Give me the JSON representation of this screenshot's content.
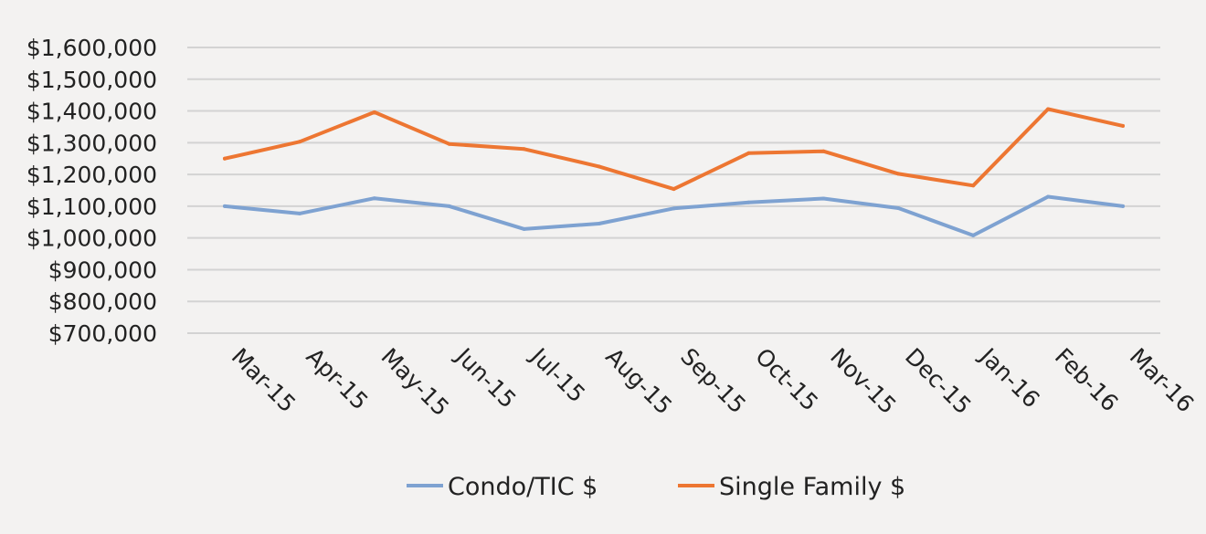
{
  "chart_data": {
    "type": "line",
    "categories": [
      "Mar-15",
      "Apr-15",
      "May-15",
      "Jun-15",
      "Jul-15",
      "Aug-15",
      "Sep-15",
      "Oct-15",
      "Nov-15",
      "Dec-15",
      "Jan-16",
      "Feb-16",
      "Mar-16"
    ],
    "series": [
      {
        "name": "Condo/TIC $",
        "color": "#7ea2d1",
        "values": [
          1100000,
          1077000,
          1125000,
          1100000,
          1028000,
          1045000,
          1093000,
          1112000,
          1124000,
          1094000,
          1008000,
          1130000,
          1100000
        ]
      },
      {
        "name": "Single Family $",
        "color": "#ed7632",
        "values": [
          1250000,
          1303000,
          1396000,
          1296000,
          1280000,
          1225000,
          1154000,
          1267000,
          1273000,
          1202000,
          1165000,
          1406000,
          1353000
        ]
      }
    ],
    "yticks": [
      "$700,000",
      "$800,000",
      "$900,000",
      "$1,000,000",
      "$1,100,000",
      "$1,200,000",
      "$1,300,000",
      "$1,400,000",
      "$1,500,000",
      "$1,600,000"
    ],
    "ylim": [
      700000,
      1600000
    ],
    "grid": true,
    "legend_position": "bottom",
    "title": "",
    "xlabel": "",
    "ylabel": ""
  }
}
